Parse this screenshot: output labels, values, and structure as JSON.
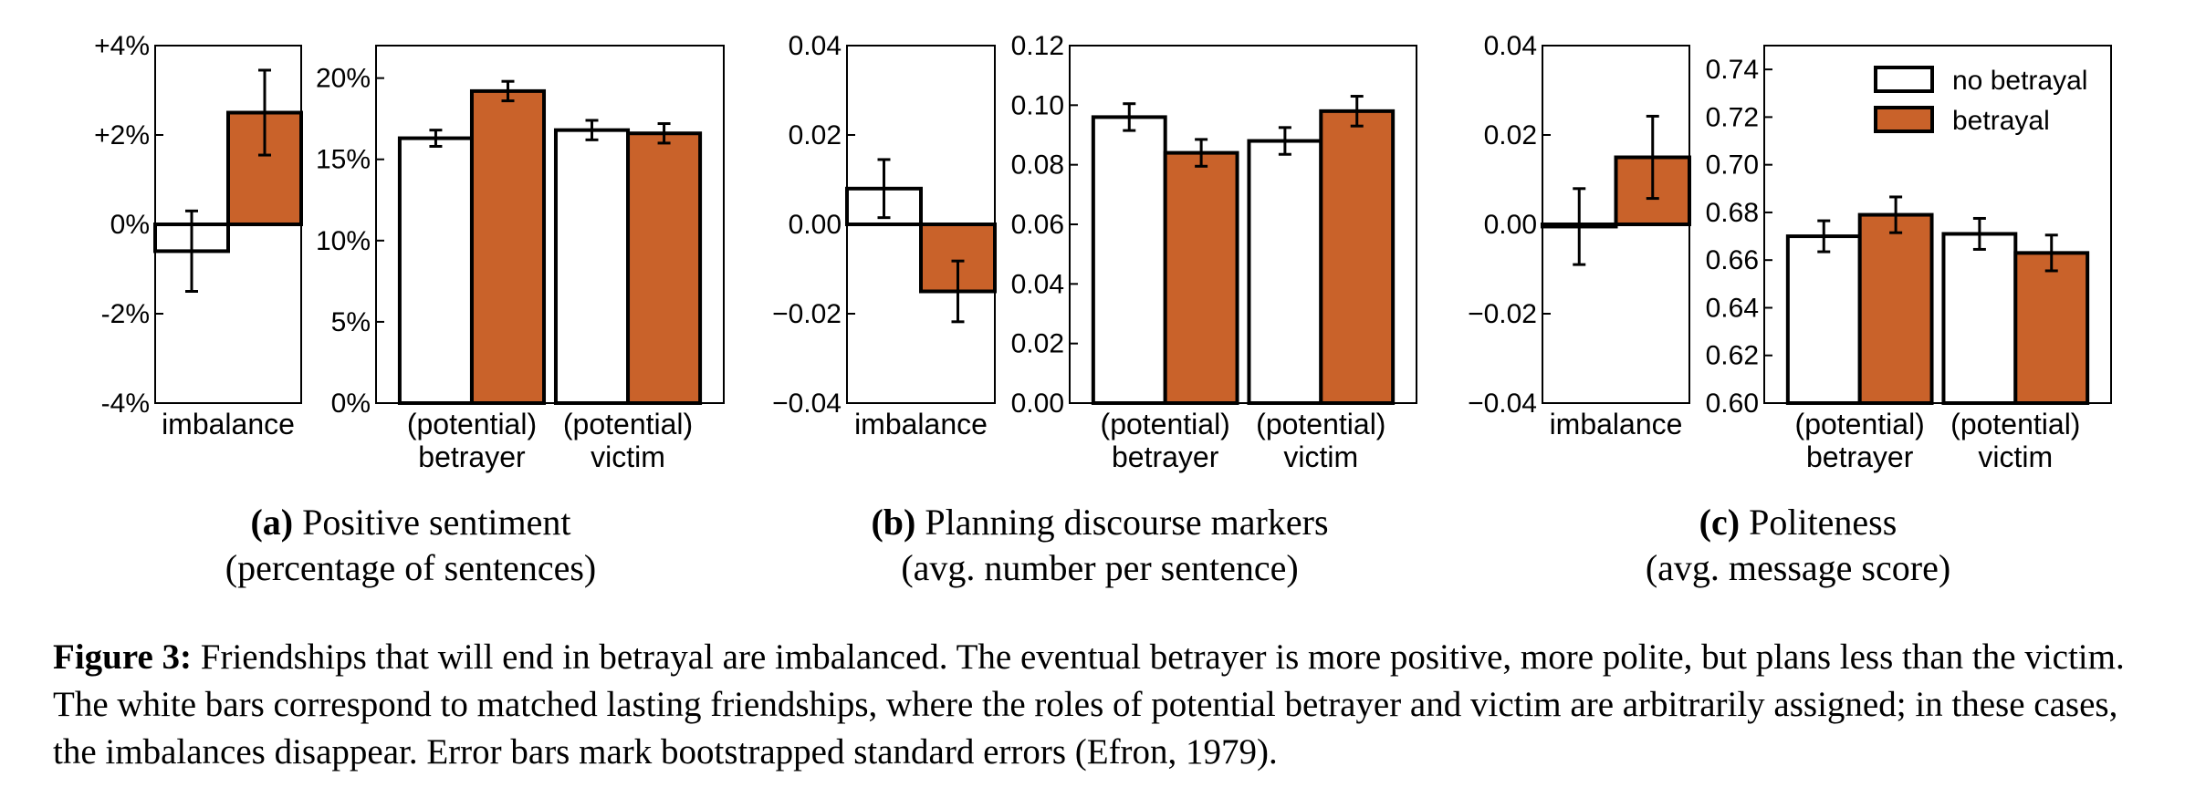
{
  "chart_data": [
    {
      "type": "bar",
      "panel": "a",
      "imbalance": {
        "category": "imbalance",
        "ylim": [
          -4,
          4
        ],
        "ticks": [
          "-4%",
          "-2%",
          "0%",
          "+2%",
          "+4%"
        ],
        "tick_values": [
          -4,
          -2,
          0,
          2,
          4
        ],
        "series": [
          {
            "key": "no_betrayal",
            "value": -0.6,
            "err": 0.9
          },
          {
            "key": "betrayal",
            "value": 2.5,
            "err": 0.95
          }
        ]
      },
      "roles": {
        "categories": [
          "(potential)\nbetrayer",
          "(potential)\nvictim"
        ],
        "ylim": [
          0,
          22
        ],
        "ticks": [
          "0%",
          "5%",
          "10%",
          "15%",
          "20%"
        ],
        "tick_values": [
          0,
          5,
          10,
          15,
          20
        ],
        "series": [
          {
            "key": "no_betrayal",
            "values": [
              16.3,
              16.8
            ],
            "err": [
              0.5,
              0.6
            ]
          },
          {
            "key": "betrayal",
            "values": [
              19.2,
              16.6
            ],
            "err": [
              0.6,
              0.6
            ]
          }
        ]
      }
    },
    {
      "type": "bar",
      "panel": "b",
      "imbalance": {
        "category": "imbalance",
        "ylim": [
          -0.04,
          0.04
        ],
        "ticks": [
          "−0.04",
          "−0.02",
          "0.00",
          "0.02",
          "0.04"
        ],
        "tick_values": [
          -0.04,
          -0.02,
          0,
          0.02,
          0.04
        ],
        "series": [
          {
            "key": "no_betrayal",
            "value": 0.008,
            "err": 0.0065
          },
          {
            "key": "betrayal",
            "value": -0.015,
            "err": 0.0068
          }
        ]
      },
      "roles": {
        "categories": [
          "(potential)\nbetrayer",
          "(potential)\nvictim"
        ],
        "ylim": [
          0,
          0.12
        ],
        "ticks": [
          "0.00",
          "0.02",
          "0.04",
          "0.06",
          "0.08",
          "0.10",
          "0.12"
        ],
        "tick_values": [
          0,
          0.02,
          0.04,
          0.06,
          0.08,
          0.1,
          0.12
        ],
        "series": [
          {
            "key": "no_betrayal",
            "values": [
              0.096,
              0.088
            ],
            "err": [
              0.0045,
              0.0045
            ]
          },
          {
            "key": "betrayal",
            "values": [
              0.084,
              0.098
            ],
            "err": [
              0.0045,
              0.005
            ]
          }
        ]
      }
    },
    {
      "type": "bar",
      "panel": "c",
      "imbalance": {
        "category": "imbalance",
        "ylim": [
          -0.04,
          0.04
        ],
        "ticks": [
          "−0.04",
          "−0.02",
          "0.00",
          "0.02",
          "0.04"
        ],
        "tick_values": [
          -0.04,
          -0.02,
          0,
          0.02,
          0.04
        ],
        "series": [
          {
            "key": "no_betrayal",
            "value": -0.0005,
            "err": 0.0085
          },
          {
            "key": "betrayal",
            "value": 0.015,
            "err": 0.0092
          }
        ]
      },
      "roles": {
        "categories": [
          "(potential)\nbetrayer",
          "(potential)\nvictim"
        ],
        "ylim": [
          0.6,
          0.75
        ],
        "ticks": [
          "0.60",
          "0.62",
          "0.64",
          "0.66",
          "0.68",
          "0.70",
          "0.72",
          "0.74"
        ],
        "tick_values": [
          0.6,
          0.62,
          0.64,
          0.66,
          0.68,
          0.7,
          0.72,
          0.74
        ],
        "series": [
          {
            "key": "no_betrayal",
            "values": [
              0.67,
              0.671
            ],
            "err": [
              0.0065,
              0.0065
            ]
          },
          {
            "key": "betrayal",
            "values": [
              0.679,
              0.663
            ],
            "err": [
              0.0075,
              0.0075
            ]
          }
        ]
      },
      "legend": {
        "placement": "top-right",
        "entries": [
          {
            "key": "no_betrayal",
            "label": "no betrayal"
          },
          {
            "key": "betrayal",
            "label": "betrayal"
          }
        ]
      }
    }
  ],
  "colors": {
    "no_betrayal": "#ffffff",
    "betrayal": "#c9622a",
    "outline": "#000000"
  },
  "subcaptions": [
    {
      "letter": "(a)",
      "line1": "Positive sentiment",
      "line2": "(percentage of sentences)"
    },
    {
      "letter": "(b)",
      "line1": "Planning discourse markers",
      "line2": "(avg. number per sentence)"
    },
    {
      "letter": "(c)",
      "line1": "Politeness",
      "line2": "(avg. message score)"
    }
  ],
  "caption": {
    "label": "Figure 3:",
    "text": "Friendships that will end in betrayal are imbalanced. The eventual betrayer is more positive, more polite, but plans less than the victim. The white bars correspond to matched lasting friendships, where the roles of potential betrayer and victim are arbitrarily assigned; in these cases, the imbalances disappear. Error bars mark bootstrapped standard errors (Efron, 1979)."
  }
}
